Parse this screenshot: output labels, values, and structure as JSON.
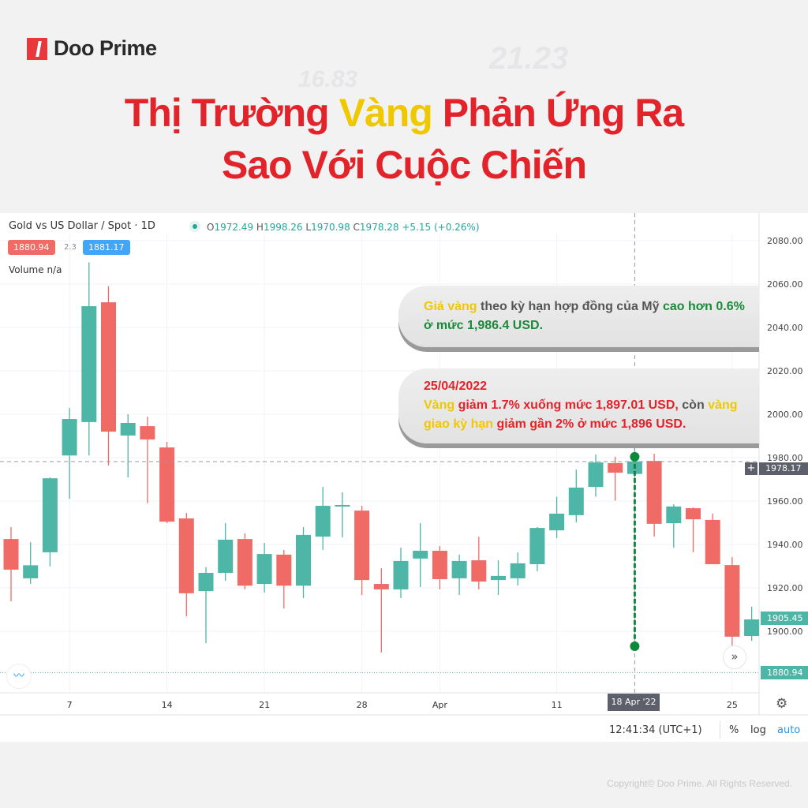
{
  "brand": {
    "name": "Doo Prime"
  },
  "watermarks": [
    "16.83",
    "21.23"
  ],
  "title": {
    "line1_a": "Thị Trường ",
    "line1_hl": "Vàng",
    "line1_b": " Phản Ứng Ra",
    "line2": "Sao Với Cuộc Chiến"
  },
  "chart_header": {
    "symbol": "Gold vs US Dollar / Spot · 1D",
    "open_label": "O",
    "open": "1972.49",
    "high_label": "H",
    "high": "1998.26",
    "low_label": "L",
    "low": "1970.98",
    "close_label": "C",
    "close": "1978.28",
    "change": "+5.15 (+0.26%)",
    "bid": "1880.94",
    "spread": "2.3",
    "ask": "1881.17",
    "volume": "Volume  n/a"
  },
  "annotations": [
    {
      "parts": [
        {
          "t": "Giá vàng",
          "c": "g"
        },
        {
          "t": " theo kỳ hạn hợp đồng của Mỹ ",
          "c": "d"
        },
        {
          "t": "cao hơn 0.6% ở mức 1,986.4 USD.",
          "c": "gr"
        }
      ]
    },
    {
      "date": "25/04/2022",
      "parts": [
        {
          "t": "Vàng",
          "c": "g"
        },
        {
          "t": " giảm 1.7% xuống mức 1,897.01 USD, ",
          "c": "r"
        },
        {
          "t": "còn",
          "c": "d"
        },
        {
          "t": " vàng giao kỳ hạn",
          "c": "g"
        },
        {
          "t": " giảm gần 2% ở mức 1,896 USD.",
          "c": "r"
        }
      ]
    }
  ],
  "price_labels": {
    "crosshair": "1978.17",
    "last": "1905.45",
    "bid_line": "1880.94",
    "crosshair_date": "18 Apr '22"
  },
  "footer": {
    "time": "12:41:34 (UTC+1)",
    "percent": "%",
    "log": "log",
    "auto": "auto"
  },
  "copyright": "Copyright© Doo Prime. All Rights Reserved.",
  "colors": {
    "up": "#4db6a6",
    "down": "#f06a66",
    "accent_red": "#e3232a",
    "accent_yellow": "#f0c800",
    "annotation_green": "#0a8a3a",
    "auto": "#2196f3"
  },
  "chart_data": {
    "type": "candlestick",
    "ylim": [
      1880,
      2090
    ],
    "yticks": [
      2080,
      2060,
      2040,
      2020,
      2000,
      1980,
      1960,
      1940,
      1920,
      1900
    ],
    "xticks": [
      {
        "label": "7",
        "date": "2022-03-07"
      },
      {
        "label": "14",
        "date": "2022-03-14"
      },
      {
        "label": "21",
        "date": "2022-03-21"
      },
      {
        "label": "28",
        "date": "2022-03-28"
      },
      {
        "label": "Apr",
        "date": "2022-04-01"
      },
      {
        "label": "11",
        "date": "2022-04-11"
      },
      {
        "label": "25",
        "date": "2022-04-25"
      }
    ],
    "candles": [
      {
        "date": "2022-03-02",
        "o": 1942.5,
        "h": 1948,
        "l": 1913.8,
        "c": 1928.4
      },
      {
        "date": "2022-03-03",
        "o": 1924.4,
        "h": 1941,
        "l": 1921.8,
        "c": 1930.4
      },
      {
        "date": "2022-03-04",
        "o": 1936.4,
        "h": 1970.9,
        "l": 1929.9,
        "c": 1970.5
      },
      {
        "date": "2022-03-07",
        "o": 1981,
        "h": 2002.9,
        "l": 1961,
        "c": 1997.8
      },
      {
        "date": "2022-03-08",
        "o": 1996.4,
        "h": 2070,
        "l": 1981,
        "c": 2049.8
      },
      {
        "date": "2022-03-09",
        "o": 2051.6,
        "h": 2059,
        "l": 1976.4,
        "c": 1992
      },
      {
        "date": "2022-03-10",
        "o": 1990.2,
        "h": 2000,
        "l": 1970.9,
        "c": 1996
      },
      {
        "date": "2022-03-11",
        "o": 1994.5,
        "h": 1998.9,
        "l": 1959,
        "c": 1988.4
      },
      {
        "date": "2022-03-14",
        "o": 1984.7,
        "h": 1987.3,
        "l": 1949.8,
        "c": 1950.5
      },
      {
        "date": "2022-03-15",
        "o": 1952,
        "h": 1954.5,
        "l": 1906.9,
        "c": 1917.5
      },
      {
        "date": "2022-03-16",
        "o": 1918.5,
        "h": 1929.5,
        "l": 1894.5,
        "c": 1926.9
      },
      {
        "date": "2022-03-17",
        "o": 1926.9,
        "h": 1949.8,
        "l": 1923.3,
        "c": 1942.2
      },
      {
        "date": "2022-03-18",
        "o": 1942.5,
        "h": 1945.1,
        "l": 1919.3,
        "c": 1921
      },
      {
        "date": "2022-03-21",
        "o": 1921.8,
        "h": 1940.7,
        "l": 1917.8,
        "c": 1935.6
      },
      {
        "date": "2022-03-22",
        "o": 1935.3,
        "h": 1937.5,
        "l": 1910.5,
        "c": 1921
      },
      {
        "date": "2022-03-23",
        "o": 1921,
        "h": 1948,
        "l": 1915.3,
        "c": 1944.4
      },
      {
        "date": "2022-03-24",
        "o": 1943.6,
        "h": 1966.5,
        "l": 1937.5,
        "c": 1957.8
      },
      {
        "date": "2022-03-25",
        "o": 1957.5,
        "h": 1964,
        "l": 1943.3,
        "c": 1958.2
      },
      {
        "date": "2022-03-28",
        "o": 1955.6,
        "h": 1957.8,
        "l": 1916.7,
        "c": 1923.6
      },
      {
        "date": "2022-03-29",
        "o": 1921.8,
        "h": 1929,
        "l": 1890.2,
        "c": 1919.3
      },
      {
        "date": "2022-03-30",
        "o": 1919.3,
        "h": 1938.5,
        "l": 1915.3,
        "c": 1932.4
      },
      {
        "date": "2022-03-31",
        "o": 1933.5,
        "h": 1949.8,
        "l": 1920.4,
        "c": 1937.1
      },
      {
        "date": "2022-04-01",
        "o": 1937.1,
        "h": 1939.3,
        "l": 1919.3,
        "c": 1924
      },
      {
        "date": "2022-04-04",
        "o": 1924.4,
        "h": 1935.3,
        "l": 1916.7,
        "c": 1932.4
      },
      {
        "date": "2022-04-05",
        "o": 1932.7,
        "h": 1943.6,
        "l": 1919.3,
        "c": 1922.9
      },
      {
        "date": "2022-04-06",
        "o": 1923.6,
        "h": 1932.7,
        "l": 1916.7,
        "c": 1925.5
      },
      {
        "date": "2022-04-07",
        "o": 1924.4,
        "h": 1936.4,
        "l": 1921.1,
        "c": 1931.3
      },
      {
        "date": "2022-04-08",
        "o": 1930.9,
        "h": 1948,
        "l": 1927.6,
        "c": 1947.6
      },
      {
        "date": "2022-04-11",
        "o": 1946.5,
        "h": 1962,
        "l": 1942.9,
        "c": 1954.2
      },
      {
        "date": "2022-04-12",
        "o": 1953.5,
        "h": 1974.5,
        "l": 1950.2,
        "c": 1966.2
      },
      {
        "date": "2022-04-13",
        "o": 1966.5,
        "h": 1981.5,
        "l": 1962,
        "c": 1977.8
      },
      {
        "date": "2022-04-14",
        "o": 1977.5,
        "h": 1980.4,
        "l": 1960.2,
        "c": 1973.1
      },
      {
        "date": "2022-04-18",
        "o": 1972.49,
        "h": 1998.26,
        "l": 1970.98,
        "c": 1978.28
      },
      {
        "date": "2022-04-19",
        "o": 1978.5,
        "h": 1981.8,
        "l": 1943.6,
        "c": 1949.5
      },
      {
        "date": "2022-04-20",
        "o": 1949.8,
        "h": 1958.5,
        "l": 1938.5,
        "c": 1957.5
      },
      {
        "date": "2022-04-21",
        "o": 1956.7,
        "h": 1957.1,
        "l": 1936.4,
        "c": 1951.6
      },
      {
        "date": "2022-04-22",
        "o": 1951.3,
        "h": 1954.2,
        "l": 1931.6,
        "c": 1930.9
      },
      {
        "date": "2022-04-25",
        "o": 1930.5,
        "h": 1934.2,
        "l": 1893.4,
        "c": 1897.5
      },
      {
        "date": "2022-04-26",
        "o": 1897.8,
        "h": 1911.3,
        "l": 1895.6,
        "c": 1905.45
      }
    ],
    "crosshair": {
      "date": "2022-04-18",
      "price": 1978.17
    },
    "highlight_range": {
      "date": "2022-04-18",
      "from": 1980.4,
      "to": 1893.1
    },
    "bid_line": 1880.94,
    "last_price": 1905.45,
    "grid": true
  }
}
